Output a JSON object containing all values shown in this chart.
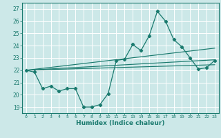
{
  "xlabel": "Humidex (Indice chaleur)",
  "bg_color": "#cce8e8",
  "line_color": "#1a7a6e",
  "grid_color": "#ffffff",
  "xlim": [
    -0.5,
    23.5
  ],
  "ylim": [
    18.5,
    27.5
  ],
  "xticks": [
    0,
    1,
    2,
    3,
    4,
    5,
    6,
    7,
    8,
    9,
    10,
    11,
    12,
    13,
    14,
    15,
    16,
    17,
    18,
    19,
    20,
    21,
    22,
    23
  ],
  "yticks": [
    19,
    20,
    21,
    22,
    23,
    24,
    25,
    26,
    27
  ],
  "data_line": {
    "x": [
      0,
      1,
      2,
      3,
      4,
      5,
      6,
      7,
      8,
      9,
      10,
      11,
      12,
      13,
      14,
      15,
      16,
      17,
      18,
      19,
      20,
      21,
      22,
      23
    ],
    "y": [
      22.0,
      21.85,
      20.5,
      20.7,
      20.3,
      20.5,
      20.5,
      19.0,
      19.0,
      19.2,
      20.1,
      22.8,
      22.9,
      24.1,
      23.6,
      24.8,
      26.8,
      26.0,
      24.5,
      23.9,
      23.0,
      22.1,
      22.2,
      22.8
    ]
  },
  "trend_lines": [
    {
      "x0": 0,
      "y0": 22.0,
      "x1": 23,
      "y1": 23.8
    },
    {
      "x0": 0,
      "y0": 22.0,
      "x1": 23,
      "y1": 22.85
    },
    {
      "x0": 0,
      "y0": 22.0,
      "x1": 23,
      "y1": 22.45
    }
  ]
}
